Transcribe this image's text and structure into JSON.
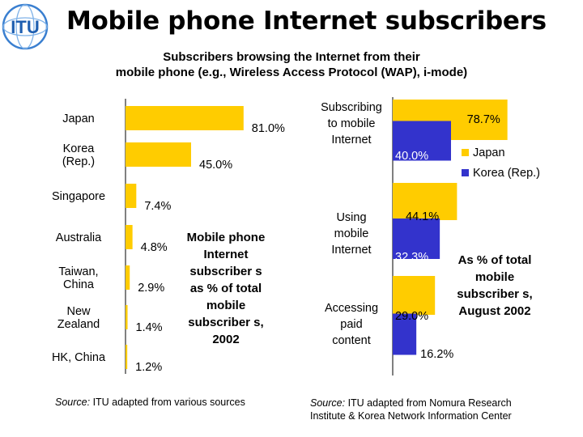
{
  "logo": {
    "text": "ITU"
  },
  "title": "Mobile phone Internet subscribers",
  "subtitle_line1": "Subscribers browsing the Internet from their",
  "subtitle_line2": "mobile phone (e.g., Wireless Access Protocol (WAP), i-mode)",
  "left_caption": "Mobile phone Internet subscriber s as % of total mobile subscriber s, 2002",
  "right_caption": "As % of total mobile subscriber s, August 2002",
  "left_source": {
    "prefix": "Source:",
    "text": " ITU adapted from various sources"
  },
  "right_source": {
    "prefix": "Source:",
    "text1": " ITU adapted from Nomura Research",
    "text2": "Institute & Korea Network Information Center"
  },
  "colors": {
    "japan": "#FFCC00",
    "korea": "#3333CC",
    "axis": "#000000",
    "background": "#FFFFFF"
  },
  "chart_data": [
    {
      "type": "bar",
      "orientation": "horizontal",
      "title": "Mobile phone Internet subscribers as % of total mobile subscribers, 2002",
      "categories": [
        [
          "Japan"
        ],
        [
          "Korea",
          "(Rep.)"
        ],
        [
          "Singapore"
        ],
        [
          "Australia"
        ],
        [
          "Taiwan,",
          "China"
        ],
        [
          "New",
          "Zealand"
        ],
        [
          "HK, China"
        ]
      ],
      "values": [
        81.0,
        45.0,
        7.4,
        4.8,
        2.9,
        1.4,
        1.2
      ],
      "labels": [
        "81.0%",
        "45.0%",
        "7.4%",
        "4.8%",
        "2.9%",
        "1.4%",
        "1.2%"
      ],
      "xlim": [
        0,
        100
      ],
      "color": "#FFCC00"
    },
    {
      "type": "bar",
      "orientation": "horizontal",
      "title": "As % of total mobile subscribers, August 2002",
      "categories": [
        [
          "Subscribing",
          "to mobile",
          "Internet"
        ],
        [
          "Using",
          "mobile",
          "Internet"
        ],
        [
          "Accessing",
          "paid",
          "content"
        ]
      ],
      "series": [
        {
          "name": "Japan",
          "values": [
            78.7,
            44.1,
            29.0
          ],
          "labels": [
            "78.7%",
            "44.1%",
            "29.0%"
          ],
          "color": "#FFCC00"
        },
        {
          "name": "Korea (Rep.)",
          "values": [
            40.0,
            32.3,
            16.2
          ],
          "labels": [
            "40.0%",
            "32.3%",
            "16.2%"
          ],
          "color": "#3333CC"
        }
      ],
      "legend": [
        "Japan",
        "Korea (Rep.)"
      ],
      "legend_position": "right",
      "xlim": [
        0,
        100
      ]
    }
  ]
}
